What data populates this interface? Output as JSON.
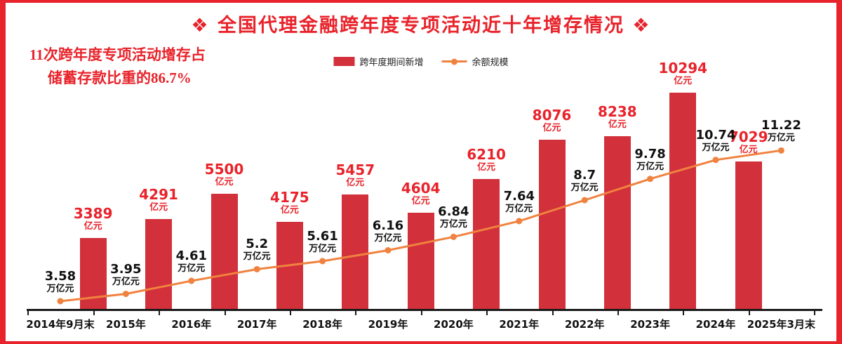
{
  "header": {
    "title": "❖ 全国代理金融跨年度专项活动近十年增存情况 ❖"
  },
  "annotation": {
    "line1": "11次跨年度专项活动增存占",
    "line2": "储蓄存款比重的86.7%"
  },
  "legend": {
    "bar_label": "跨年度期间新增",
    "line_label": "余额规模"
  },
  "colors": {
    "bar": "#d2303b",
    "accent": "#e8232b",
    "line": "#f0823f",
    "ink": "#111111"
  },
  "chart_data": {
    "type": "bar+line",
    "title": "全国代理金融跨年度专项活动近十年增存情况",
    "x_categories": [
      "2014年9月末",
      "2015年",
      "2016年",
      "2017年",
      "2018年",
      "2019年",
      "2020年",
      "2021年",
      "2022年",
      "2023年",
      "2024年",
      "2025年3月末"
    ],
    "bar_series": {
      "name": "跨年度期间新增",
      "unit": "亿元",
      "placement": "between consecutive year ticks",
      "values": [
        3389,
        4291,
        5500,
        4175,
        5457,
        4604,
        6210,
        8076,
        8238,
        10294,
        7029
      ]
    },
    "line_series": {
      "name": "余额规模",
      "unit": "万亿元",
      "placement": "on year ticks",
      "values": [
        3.58,
        3.95,
        4.61,
        5.2,
        5.61,
        6.16,
        6.84,
        7.64,
        8.7,
        9.78,
        10.74,
        11.22
      ]
    },
    "annotation": "11次跨年度专项活动增存占储蓄存款比重的86.7%",
    "legend_position": "top-center",
    "grid": false
  }
}
